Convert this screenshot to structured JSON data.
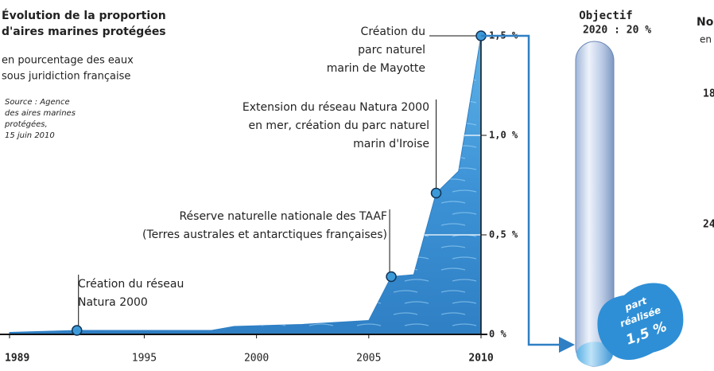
{
  "chart_data": {
    "type": "area",
    "title": [
      "Évolution de la proportion",
      "d'aires marines protégées"
    ],
    "subtitle": [
      "en pourcentage des eaux",
      "sous juridiction française"
    ],
    "source": [
      "Source : Agence",
      "des aires marines",
      "protégées,",
      "15 juin 2010"
    ],
    "x": [
      1989,
      1992,
      1998,
      1999,
      2002,
      2005,
      2006,
      2007,
      2008,
      2009,
      2010
    ],
    "values": [
      0.01,
      0.02,
      0.02,
      0.04,
      0.05,
      0.07,
      0.29,
      0.3,
      0.71,
      0.82,
      1.5
    ],
    "xlim": [
      1989,
      2010
    ],
    "xticks": [
      1989,
      1995,
      2000,
      2005,
      2010
    ],
    "ylim": [
      0,
      1.5
    ],
    "yticks": [
      {
        "value": 0,
        "label": "0 %"
      },
      {
        "value": 0.5,
        "label": "0,5 %"
      },
      {
        "value": 1.0,
        "label": "1,0 %"
      },
      {
        "value": 1.5,
        "label": "1,5 %"
      }
    ],
    "color": "#3a8fd0",
    "annotations": [
      {
        "x": 1992,
        "text": [
          "Création du réseau",
          "Natura 2000"
        ]
      },
      {
        "x": 2006,
        "text": [
          "Réserve naturelle nationale des TAAF",
          "(Terres australes et antarctiques françaises)"
        ]
      },
      {
        "x": 2008,
        "text": [
          "Extension du réseau Natura 2000",
          "en mer, création du parc naturel",
          "marin d'Iroise"
        ]
      },
      {
        "x": 2010,
        "text": [
          "Création du",
          "parc naturel",
          "marin de Mayotte"
        ]
      }
    ],
    "goal": {
      "label": "Objectif",
      "value_label": "2020 : 20 %",
      "value": 20
    },
    "achieved": {
      "value": 1.5,
      "label": [
        "part",
        "réalisée",
        "1,5 %"
      ]
    },
    "side_panel": [
      "No",
      "en",
      "18",
      "24"
    ]
  }
}
